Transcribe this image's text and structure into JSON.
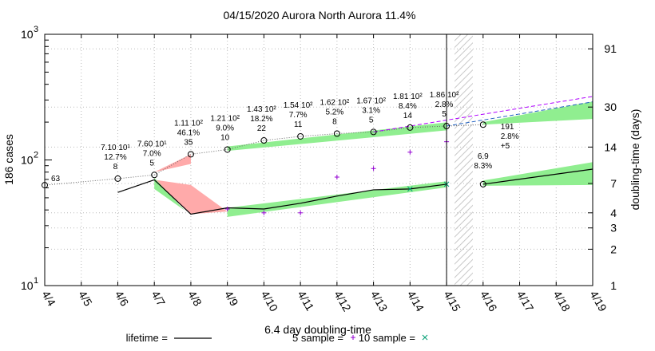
{
  "chart_data": {
    "type": "line",
    "title": "04/15/2020 Aurora North Aurora 11.4%",
    "ylabel": "186 cases",
    "y2label": "doubling-time (days)",
    "xlabel": "6.4 day doubling-time",
    "x_categories": [
      "4/4",
      "4/5",
      "4/6",
      "4/7",
      "4/8",
      "4/9",
      "4/10",
      "4/11",
      "4/12",
      "4/13",
      "4/14",
      "4/15",
      "4/16",
      "4/17",
      "4/18",
      "4/19"
    ],
    "y_scale": "log",
    "ylim": [
      10,
      1000
    ],
    "y_ticks": [
      {
        "value": 10,
        "base": "10",
        "exp": "1"
      },
      {
        "value": 100,
        "base": "10",
        "exp": "2"
      },
      {
        "value": 1000,
        "base": "10",
        "exp": "3"
      }
    ],
    "y2_scale": "log",
    "y2lim": [
      1,
      120
    ],
    "y2_ticks": [
      1,
      2,
      3,
      4,
      7,
      14,
      30,
      91
    ],
    "grid": true,
    "cases": {
      "x": [
        "4/4",
        "4/6",
        "4/7",
        "4/8",
        "4/9",
        "4/10",
        "4/11",
        "4/12",
        "4/13",
        "4/14",
        "4/15",
        "4/16"
      ],
      "values": [
        63,
        71,
        76,
        111,
        121,
        143,
        154,
        162,
        167,
        181,
        186,
        191
      ]
    },
    "annotations": [
      {
        "x": "4/4",
        "lines": [
          "63"
        ],
        "value": 63,
        "offset": "right"
      },
      {
        "x": "4/6",
        "lines": [
          "7.10 10¹",
          "12.7%",
          "8"
        ],
        "value": 71
      },
      {
        "x": "4/7",
        "lines": [
          "7.60 10¹",
          "7.0%",
          "5"
        ],
        "value": 76
      },
      {
        "x": "4/8",
        "lines": [
          "1.11 10²",
          "46.1%",
          "35"
        ],
        "value": 111
      },
      {
        "x": "4/9",
        "lines": [
          "1.21 10²",
          "9.0%",
          "10"
        ],
        "value": 121
      },
      {
        "x": "4/10",
        "lines": [
          "1.43 10²",
          "18.2%",
          "22"
        ],
        "value": 143
      },
      {
        "x": "4/11",
        "lines": [
          "1.54 10²",
          "7.7%",
          "11"
        ],
        "value": 154
      },
      {
        "x": "4/12",
        "lines": [
          "1.62 10²",
          "5.2%",
          "8"
        ],
        "value": 162
      },
      {
        "x": "4/13",
        "lines": [
          "1.67 10²",
          "3.1%",
          "5"
        ],
        "value": 167
      },
      {
        "x": "4/14",
        "lines": [
          "1.81 10²",
          "8.4%",
          "14"
        ],
        "value": 181
      },
      {
        "x": "4/15",
        "lines": [
          "1.86 10²",
          "2.8%",
          "5"
        ],
        "value": 186
      },
      {
        "x": "4/16",
        "lines": [
          "191",
          "2.8%",
          "+5"
        ],
        "value": 191,
        "offset": "below"
      },
      {
        "x": "4/16",
        "lines": [
          "6.9",
          "8.3%"
        ],
        "value": 110,
        "offset": "above-lower"
      }
    ],
    "series": [
      {
        "name": "lifetime",
        "marker": "line",
        "color": "#000000",
        "x": [
          "4/6",
          "4/7",
          "4/8",
          "4/9",
          "4/10",
          "4/11",
          "4/12",
          "4/13",
          "4/14",
          "4/15"
        ],
        "doubling_days": [
          5.9,
          7.5,
          3.9,
          4.4,
          4.3,
          4.8,
          5.5,
          6.2,
          6.3,
          6.9
        ]
      },
      {
        "name": "5 sample",
        "marker": "+",
        "color": "#9400d3",
        "x": [
          "4/9",
          "4/10",
          "4/11",
          "4/12",
          "4/13",
          "4/14",
          "4/15"
        ],
        "doubling_days": [
          4.3,
          4.0,
          4.0,
          7.9,
          9.3,
          12.7,
          15.5
        ]
      },
      {
        "name": "10 sample",
        "marker": "x",
        "color": "#009e73",
        "x": [
          "4/14",
          "4/15"
        ],
        "doubling_days": [
          6.3,
          6.9
        ]
      }
    ],
    "projection_doubling": {
      "x": [
        "4/16",
        "4/19"
      ],
      "doubling_days": [
        6.9,
        9.2
      ]
    },
    "legend": {
      "placement": "bottom",
      "entries": [
        {
          "label": "lifetime =",
          "marker": "line"
        },
        {
          "label": "5 sample =",
          "marker": "+"
        },
        {
          "label": "10 sample =",
          "marker": "x"
        }
      ]
    },
    "colors": {
      "band_green": "#90ee90",
      "band_red": "#ffaaaa",
      "projection_magenta": "#b000ff",
      "projection_blue": "#2060c0",
      "hatch": "#c8c8c8",
      "plus_marker": "#9400d3",
      "x_marker": "#009e73"
    }
  }
}
